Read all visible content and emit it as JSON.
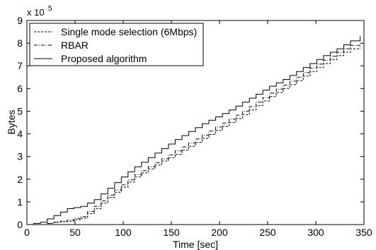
{
  "chart_data": {
    "type": "line",
    "title": "",
    "xlabel": "Time [sec]",
    "ylabel": "Bytes",
    "xlim": [
      0,
      350
    ],
    "ylim": [
      0,
      9
    ],
    "y_scale_label": "x 10",
    "y_scale_exponent": "5",
    "x_ticks": [
      "0",
      "50",
      "100",
      "150",
      "200",
      "250",
      "300",
      "350"
    ],
    "y_ticks": [
      "0",
      "1",
      "2",
      "3",
      "4",
      "5",
      "6",
      "7",
      "8",
      "9"
    ],
    "grid": false,
    "legend_position": "top-left",
    "step_interval": 7,
    "series": [
      {
        "name": "Single mode selection (6Mbps)",
        "style": "dashed",
        "color": "#000000",
        "x": [
          0,
          14,
          28,
          42,
          56,
          70,
          84,
          98,
          112,
          126,
          140,
          154,
          168,
          182,
          196,
          210,
          224,
          238,
          252,
          266,
          280,
          294,
          308,
          322,
          336,
          346
        ],
        "y": [
          0,
          0,
          0.1,
          0.15,
          0.28,
          0.7,
          1.2,
          1.65,
          2.1,
          2.45,
          2.8,
          3.1,
          3.45,
          3.8,
          4.15,
          4.5,
          4.85,
          5.25,
          5.65,
          6.0,
          6.35,
          6.75,
          7.1,
          7.45,
          7.75,
          7.8
        ]
      },
      {
        "name": "RBAR",
        "style": "dashdot",
        "color": "#000000",
        "x": [
          0,
          14,
          28,
          42,
          56,
          70,
          84,
          98,
          112,
          126,
          140,
          154,
          168,
          182,
          196,
          210,
          224,
          238,
          252,
          266,
          280,
          294,
          308,
          322,
          336,
          346
        ],
        "y": [
          0,
          0,
          0.1,
          0.2,
          0.35,
          0.8,
          1.3,
          1.75,
          2.2,
          2.55,
          2.9,
          3.25,
          3.6,
          3.95,
          4.3,
          4.65,
          5.0,
          5.4,
          5.8,
          6.15,
          6.5,
          6.9,
          7.25,
          7.6,
          7.9,
          8.0
        ]
      },
      {
        "name": "Proposed algorithm",
        "style": "solid",
        "color": "#000000",
        "x": [
          0,
          14,
          28,
          42,
          56,
          70,
          84,
          98,
          112,
          126,
          140,
          154,
          168,
          182,
          196,
          210,
          224,
          238,
          252,
          266,
          280,
          294,
          308,
          322,
          336,
          346
        ],
        "y": [
          0,
          0.1,
          0.4,
          0.7,
          0.8,
          1.1,
          1.6,
          2.1,
          2.55,
          2.95,
          3.35,
          3.75,
          4.1,
          4.45,
          4.75,
          5.05,
          5.4,
          5.75,
          6.1,
          6.4,
          6.75,
          7.1,
          7.45,
          7.75,
          8.1,
          8.3
        ]
      }
    ]
  }
}
